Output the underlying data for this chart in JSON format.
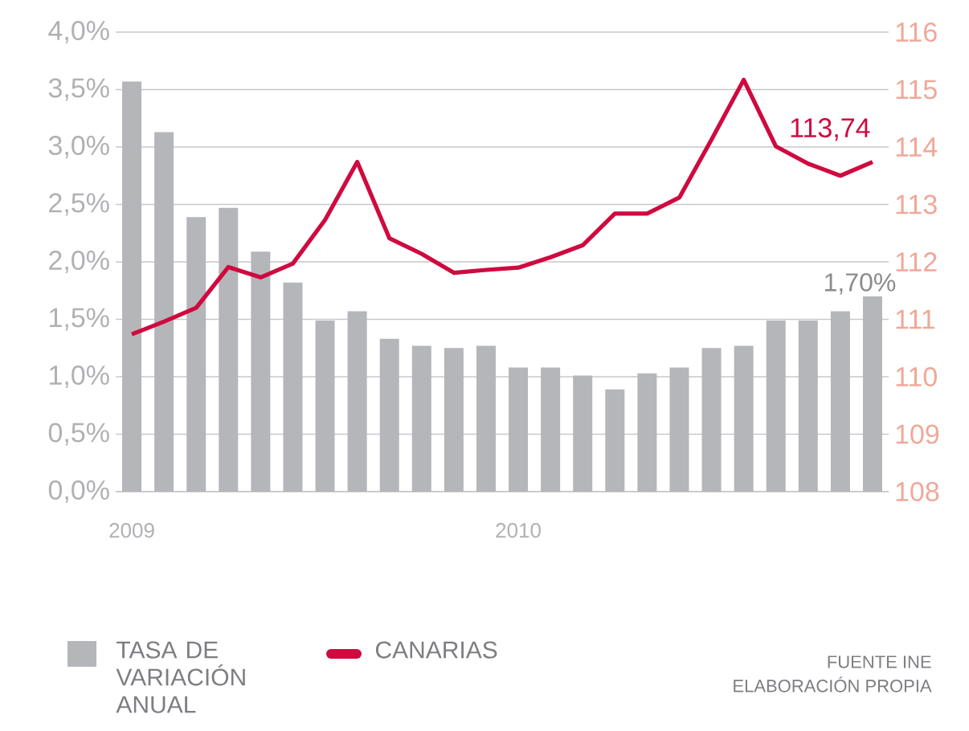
{
  "chart_data": {
    "type": "bar",
    "categories": [
      "2009",
      null,
      null,
      null,
      null,
      null,
      null,
      null,
      null,
      null,
      null,
      null,
      "2010",
      null,
      null,
      null,
      null,
      null,
      null,
      null,
      null,
      null,
      null,
      null
    ],
    "series": [
      {
        "name": "TASA DE VARIACIÓN ANUAL",
        "color": "#b5b6ba",
        "values": [
          3.57,
          3.13,
          2.39,
          2.47,
          2.09,
          1.82,
          1.49,
          1.57,
          1.33,
          1.27,
          1.25,
          1.27,
          1.08,
          1.08,
          1.01,
          0.89,
          1.03,
          1.08,
          1.25,
          1.27,
          1.49,
          1.49,
          1.57,
          1.7
        ],
        "value_labels": [
          null,
          null,
          null,
          null,
          null,
          null,
          null,
          null,
          null,
          null,
          null,
          null,
          null,
          null,
          null,
          null,
          null,
          null,
          null,
          null,
          null,
          null,
          null,
          "1,70%"
        ]
      },
      {
        "name": "CANARIAS",
        "type": "line",
        "axis": "y2",
        "color": "#cf0a3f",
        "values": [
          110.74,
          110.96,
          111.2,
          111.91,
          111.73,
          111.97,
          112.73,
          113.74,
          112.41,
          112.14,
          111.81,
          111.86,
          111.9,
          112.08,
          112.29,
          112.84,
          112.84,
          113.12,
          114.13,
          115.17,
          114.01,
          113.71,
          113.5,
          113.74
        ],
        "value_labels": [
          null,
          null,
          null,
          null,
          null,
          null,
          null,
          null,
          null,
          null,
          null,
          null,
          null,
          null,
          null,
          null,
          null,
          null,
          null,
          null,
          null,
          null,
          null,
          "113,74"
        ]
      }
    ],
    "ylim": [
      0,
      4
    ],
    "yticks": [
      {
        "value": 0,
        "label": "0,0%"
      },
      {
        "value": 0.5,
        "label": "0,5%"
      },
      {
        "value": 1,
        "label": "1,0%"
      },
      {
        "value": 1.5,
        "label": "1,5%"
      },
      {
        "value": 2,
        "label": "2,0%"
      },
      {
        "value": 2.5,
        "label": "2,5%"
      },
      {
        "value": 3,
        "label": "3,0%"
      },
      {
        "value": 3.5,
        "label": "3,5%"
      },
      {
        "value": 4,
        "label": "4,0%"
      }
    ],
    "y2lim": [
      108,
      116
    ],
    "y2ticks": [
      108,
      109,
      110,
      111,
      112,
      113,
      114,
      115,
      116
    ],
    "grid": "y",
    "legend": "bottom",
    "marker": "none",
    "line_style": "solid",
    "annotations": [
      "FUENTE INE",
      "ELABORACIÓN PROPIA"
    ]
  }
}
